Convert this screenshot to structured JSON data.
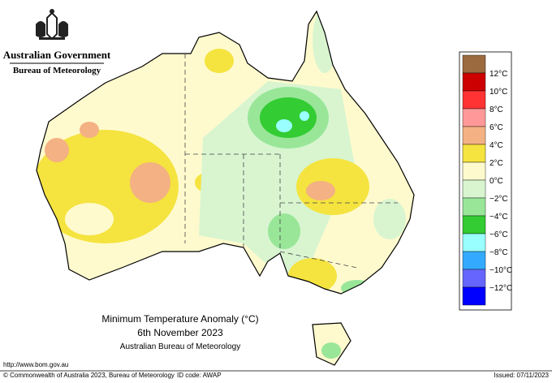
{
  "header": {
    "government": "Australian Government",
    "bureau": "Bureau of Meteorology"
  },
  "legend": {
    "colors": [
      "#9c6a3f",
      "#cc0000",
      "#ff3333",
      "#ff9999",
      "#f4b183",
      "#f5e33f",
      "#fffacd",
      "#d8f5d0",
      "#99e699",
      "#33cc33",
      "#99ffff",
      "#33aaff",
      "#6666ff",
      "#0000ff"
    ],
    "labels": [
      "12°C",
      "10°C",
      "8°C",
      "6°C",
      "4°C",
      "2°C",
      "0°C",
      "−2°C",
      "−4°C",
      "−6°C",
      "−8°C",
      "−10°C",
      "−12°C"
    ]
  },
  "title": {
    "line1": "Minimum Temperature Anomaly (°C)",
    "line2": "6th November 2023",
    "line3": "Australian Bureau of Meteorology"
  },
  "footer": {
    "url": "http://www.bom.gov.au",
    "copyright": "© Commonwealth of Australia 2023, Bureau of Meteorology",
    "id": "ID code: AWAP",
    "issued": "Issued: 07/11/2023"
  }
}
